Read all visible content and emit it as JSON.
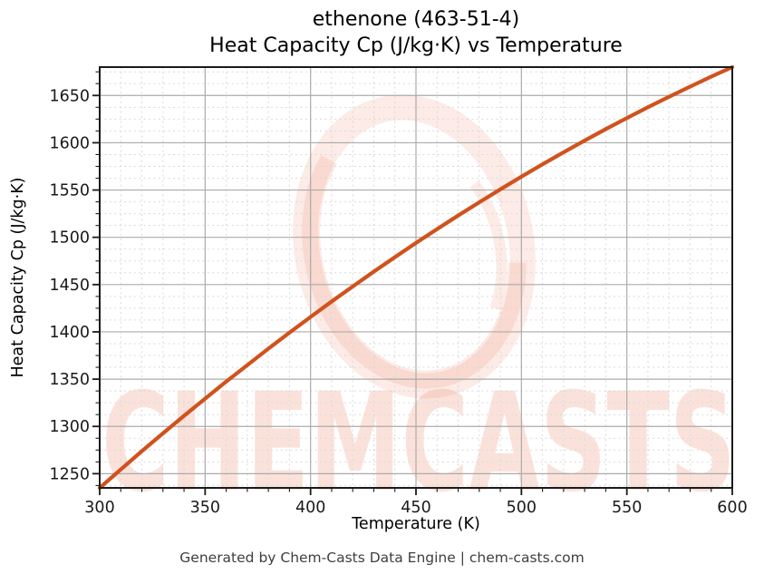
{
  "title": {
    "line1": "ethenone (463-51-4)",
    "line2": "Heat Capacity Cp (J/kg·K) vs Temperature"
  },
  "footer": "Generated by Chem-Casts Data Engine | chem-casts.com",
  "watermark": {
    "text": "CHEMCASTS",
    "color": "#e8663f",
    "text_opacity": 0.18,
    "ring_opacity": 0.13
  },
  "colors": {
    "line": "#d0521d",
    "major_grid": "#ababab",
    "minor_grid": "#d9d9d9",
    "spine": "#1a1a1a",
    "tick_label": "#1a1a1a",
    "footer_text": "#3f3f3f"
  },
  "chart_data": {
    "type": "line",
    "title": "ethenone (463-51-4)\nHeat Capacity Cp (J/kg·K) vs Temperature",
    "xlabel": "Temperature (K)",
    "ylabel": "Heat Capacity Cp (J/kg·K)",
    "xlim": [
      300,
      600
    ],
    "ylim": [
      1235,
      1680
    ],
    "x_ticks": [
      300,
      350,
      400,
      450,
      500,
      550,
      600
    ],
    "y_ticks": [
      1250,
      1300,
      1350,
      1400,
      1450,
      1500,
      1550,
      1600,
      1650
    ],
    "x_minor_step": 10,
    "y_minor_step": 12.5,
    "grid": true,
    "legend": false,
    "series": [
      {
        "name": "Heat Capacity Cp",
        "x": [
          300,
          310,
          320,
          330,
          340,
          350,
          360,
          370,
          380,
          390,
          400,
          410,
          420,
          430,
          440,
          450,
          460,
          470,
          480,
          490,
          500,
          510,
          520,
          530,
          540,
          550,
          560,
          570,
          580,
          590,
          600
        ],
        "y": [
          1235.0,
          1254.5,
          1273.8,
          1292.6,
          1311.2,
          1329.4,
          1347.4,
          1364.9,
          1382.2,
          1399.2,
          1415.8,
          1432.1,
          1448.0,
          1463.7,
          1479.0,
          1494.0,
          1508.7,
          1523.0,
          1537.0,
          1550.7,
          1564.1,
          1577.2,
          1589.9,
          1602.3,
          1614.4,
          1626.1,
          1637.5,
          1648.6,
          1659.4,
          1669.9,
          1680.0
        ]
      }
    ]
  }
}
